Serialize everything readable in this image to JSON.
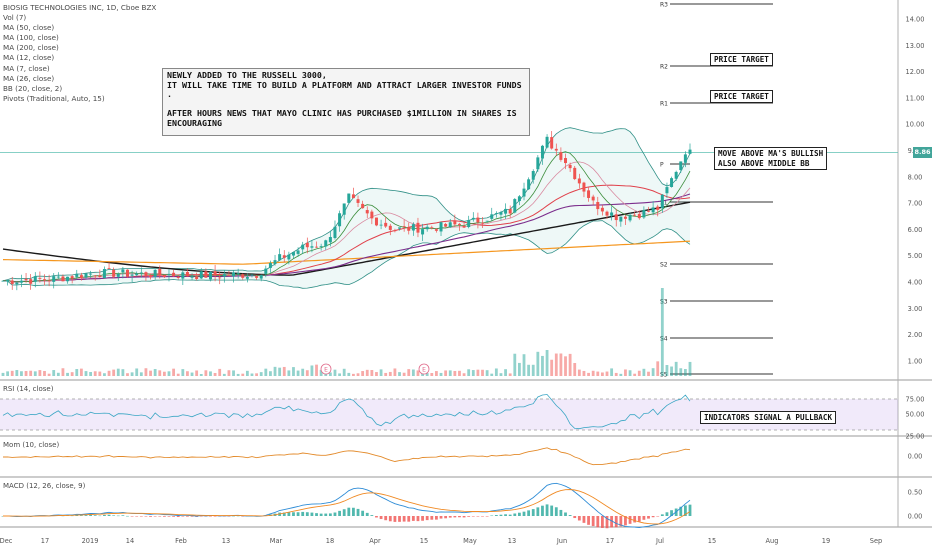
{
  "legend": {
    "title": "BIOSIG TECHNOLOGIES INC, 1D, Cboe BZX",
    "lines": [
      "Vol (7)",
      "MA (50, close)",
      "MA (100, close)",
      "MA (200, close)",
      "MA (12, close)",
      "MA (7, close)",
      "MA (26, close)",
      "BB (20, close, 2)",
      "Pivots (Traditional, Auto, 15)"
    ]
  },
  "panes": {
    "rsi_label": "RSI (14, close)",
    "mom_label": "Mom (10, close)",
    "macd_label": "MACD (12, 26, close, 9)"
  },
  "price_axis": [
    "14.00",
    "13.00",
    "12.00",
    "11.00",
    "10.00",
    "9.00",
    "8.00",
    "7.00",
    "6.00",
    "5.00",
    "4.00",
    "3.00",
    "2.00",
    "1.00"
  ],
  "rsi_axis": [
    "75.00",
    "50.00",
    "25.00"
  ],
  "mom_axis": [
    "0.00"
  ],
  "macd_axis": [
    "0.50",
    "0.00"
  ],
  "time_axis": [
    "Dec",
    "17",
    "2019",
    "14",
    "Feb",
    "13",
    "Mar",
    "18",
    "Apr",
    "15",
    "May",
    "13",
    "Jun",
    "17",
    "Jul",
    "15",
    "Aug",
    "19",
    "Sep"
  ],
  "pivot_labels": [
    "R3",
    "R2",
    "R1",
    "P",
    "S1",
    "S2",
    "S3",
    "S4",
    "S5"
  ],
  "last_price": "8.86",
  "earnings_marker": "E",
  "annotations": {
    "note_lines": [
      "NEWLY ADDED TO THE RUSSELL 3000,",
      "IT WILL TAKE TIME TO BUILD A PLATFORM AND ATTRACT LARGER INVESTOR FUNDS .",
      "",
      "AFTER HOURS NEWS THAT MAYO CLINIC HAS PURCHASED $1MILLION IN SHARES IS",
      "ENCOURAGING"
    ],
    "price_target_1": "PRICE TARGET",
    "price_target_2": "PRICE TARGET",
    "bullish_line1": "MOVE ABOVE MA'S BULLISH",
    "bullish_line2": "ALSO ABOVE MIDDLE BB",
    "pullback": "INDICATORS SIGNAL A PULLBACK"
  },
  "colors": {
    "up": "#26a69a",
    "down": "#ef5350",
    "ma_black": "#1a1a1a",
    "ma_orange": "#f5961e",
    "ma_purple": "#7b2d8c",
    "ma_red": "#e0414b",
    "ma_green": "#3b8d3b",
    "bb": "#2f8f86",
    "rsi": "#3aa6c4",
    "mom": "#e38a2a",
    "macd": "#2e8cd6",
    "signal": "#f08a24"
  }
}
